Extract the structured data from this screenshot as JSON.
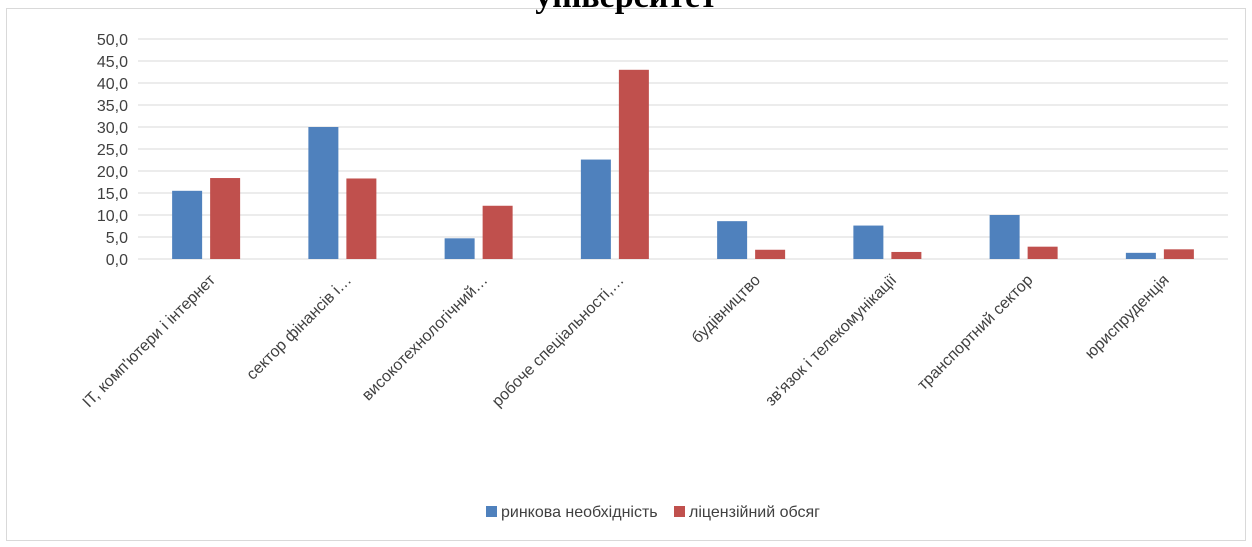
{
  "chart_data": {
    "type": "bar",
    "title": "університет",
    "categories": [
      "ІТ, комп'ютери і інтернет",
      "сектор фінансів і…",
      "високотехнологічний…",
      "робоче спеціальності,…",
      "будівництво",
      "зв'язок і телекомунікації",
      "транспортний сектор",
      "юриспруденція"
    ],
    "series": [
      {
        "name": "ринкова необхідність",
        "values": [
          15.5,
          30.0,
          4.7,
          22.6,
          8.6,
          7.6,
          10.0,
          1.4
        ]
      },
      {
        "name": "ліцензійний обсяг",
        "values": [
          18.4,
          18.3,
          12.1,
          43.0,
          2.1,
          1.6,
          2.8,
          2.2
        ]
      }
    ],
    "ylim": [
      0,
      50
    ],
    "yticks": [
      "0,0",
      "5,0",
      "10,0",
      "15,0",
      "20,0",
      "25,0",
      "30,0",
      "35,0",
      "40,0",
      "45,0",
      "50,0"
    ],
    "grid": true,
    "legend": "bottom",
    "colors": [
      "#4f81bd",
      "#c0504d"
    ],
    "gridColor": "#d9d9d9"
  }
}
